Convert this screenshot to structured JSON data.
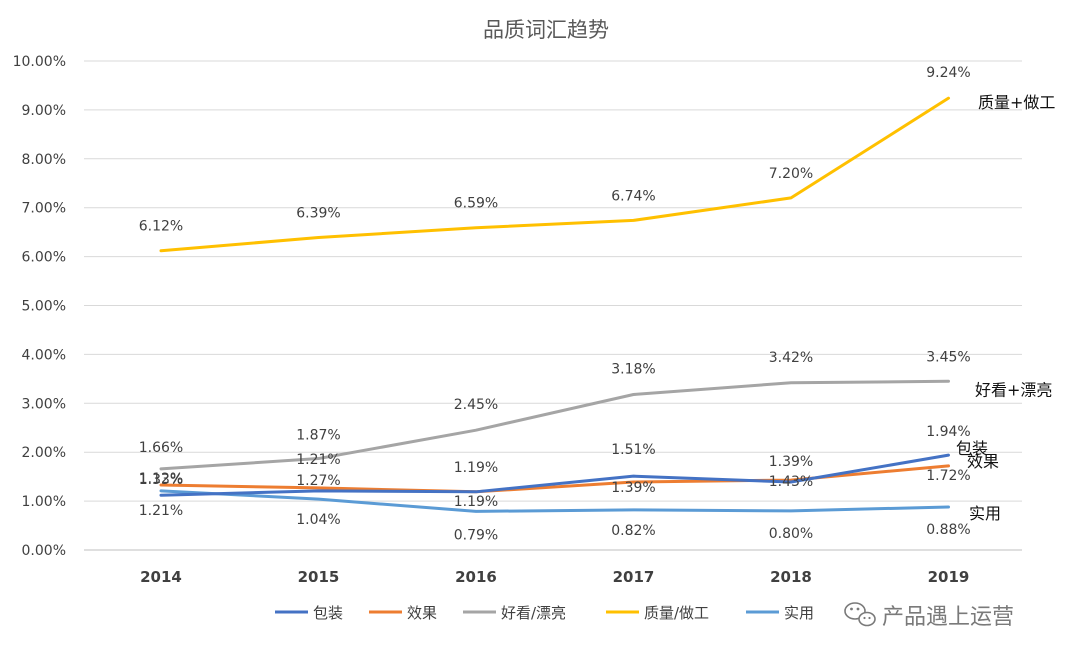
{
  "chart_data": {
    "type": "line",
    "title": "品质词汇趋势",
    "x": [
      "2014",
      "2015",
      "2016",
      "2017",
      "2018",
      "2019"
    ],
    "ylim": [
      0,
      0.1
    ],
    "yticks": [
      "0.00%",
      "1.00%",
      "2.00%",
      "3.00%",
      "4.00%",
      "5.00%",
      "6.00%",
      "7.00%",
      "8.00%",
      "9.00%",
      "10.00%"
    ],
    "grid": true,
    "legend_position": "bottom",
    "series": [
      {
        "name": "包装",
        "color": "#4472C4",
        "values": [
          0.0112,
          0.0121,
          0.0119,
          0.0151,
          0.0139,
          0.0194
        ],
        "labels": [
          "1.12%",
          "1.21%",
          "1.19%",
          "1.51%",
          "1.39%",
          "1.94%"
        ],
        "end_label": "包装"
      },
      {
        "name": "效果",
        "color": "#ED7D31",
        "values": [
          0.0133,
          0.0127,
          0.0119,
          0.0139,
          0.0143,
          0.0172
        ],
        "labels": [
          "1.33%",
          "1.27%",
          "1.19%",
          "1.39%",
          "1.43%",
          "1.72%"
        ],
        "end_label": "效果"
      },
      {
        "name": "好看/漂亮",
        "color": "#A5A5A5",
        "values": [
          0.0166,
          0.0187,
          0.0245,
          0.0318,
          0.0342,
          0.0345
        ],
        "labels": [
          "1.66%",
          "1.87%",
          "2.45%",
          "3.18%",
          "3.42%",
          "3.45%"
        ],
        "end_label": "好看+漂亮"
      },
      {
        "name": "质量/做工",
        "color": "#FFC000",
        "values": [
          0.0612,
          0.0639,
          0.0659,
          0.0674,
          0.072,
          0.0924
        ],
        "labels": [
          "6.12%",
          "6.39%",
          "6.59%",
          "6.74%",
          "7.20%",
          "9.24%"
        ],
        "end_label": "质量+做工"
      },
      {
        "name": "实用",
        "color": "#5B9BD5",
        "values": [
          0.0121,
          0.0104,
          0.0079,
          0.0082,
          0.008,
          0.0088
        ],
        "labels": [
          "1.21%",
          "1.04%",
          "0.79%",
          "0.82%",
          "0.80%",
          "0.88%"
        ],
        "end_label": "实用"
      }
    ]
  },
  "watermark": {
    "text": "产品遇上运营",
    "icon": "wechat-icon"
  }
}
